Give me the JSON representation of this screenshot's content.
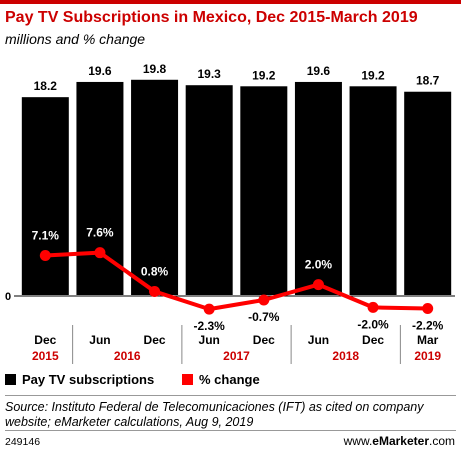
{
  "title": "Pay TV Subscriptions in Mexico, Dec 2015-March 2019",
  "subtitle": "millions and % change",
  "colors": {
    "bar": "#000000",
    "line": "#ff0000",
    "year": "#cc0000",
    "accent": "#cc0000"
  },
  "chart_data": {
    "type": "bar",
    "categories": [
      "Dec",
      "Jun",
      "Dec",
      "Jun",
      "Dec",
      "Jun",
      "Dec",
      "Mar"
    ],
    "years": [
      {
        "label": "2015",
        "from": 0,
        "to": 0
      },
      {
        "label": "2016",
        "from": 1,
        "to": 2
      },
      {
        "label": "2017",
        "from": 3,
        "to": 4
      },
      {
        "label": "2018",
        "from": 5,
        "to": 6
      },
      {
        "label": "2019",
        "from": 7,
        "to": 7
      }
    ],
    "series": [
      {
        "name": "Pay TV subscriptions",
        "type": "bar",
        "values": [
          18.2,
          19.6,
          19.8,
          19.3,
          19.2,
          19.6,
          19.2,
          18.7
        ],
        "labels": [
          "18.2",
          "19.6",
          "19.8",
          "19.3",
          "19.2",
          "19.6",
          "19.2",
          "18.7"
        ]
      },
      {
        "name": "% change",
        "type": "line",
        "values": [
          7.1,
          7.6,
          0.8,
          -2.3,
          -0.7,
          2.0,
          -2.0,
          -2.2
        ],
        "labels": [
          "7.1%",
          "7.6%",
          "0.8%",
          "-2.3%",
          "-0.7%",
          "2.0%",
          "-2.0%",
          "-2.2%"
        ]
      }
    ],
    "zero_label": "0",
    "legend": "bottom-left"
  },
  "source": "Source: Instituto Federal de Telecomunicaciones (IFT) as cited on company website; eMarketer calculations, Aug 9, 2019",
  "footer_id": "249146",
  "footer_brand_prefix": "www.",
  "footer_brand_name": "eMarketer",
  "footer_brand_suffix": ".com"
}
